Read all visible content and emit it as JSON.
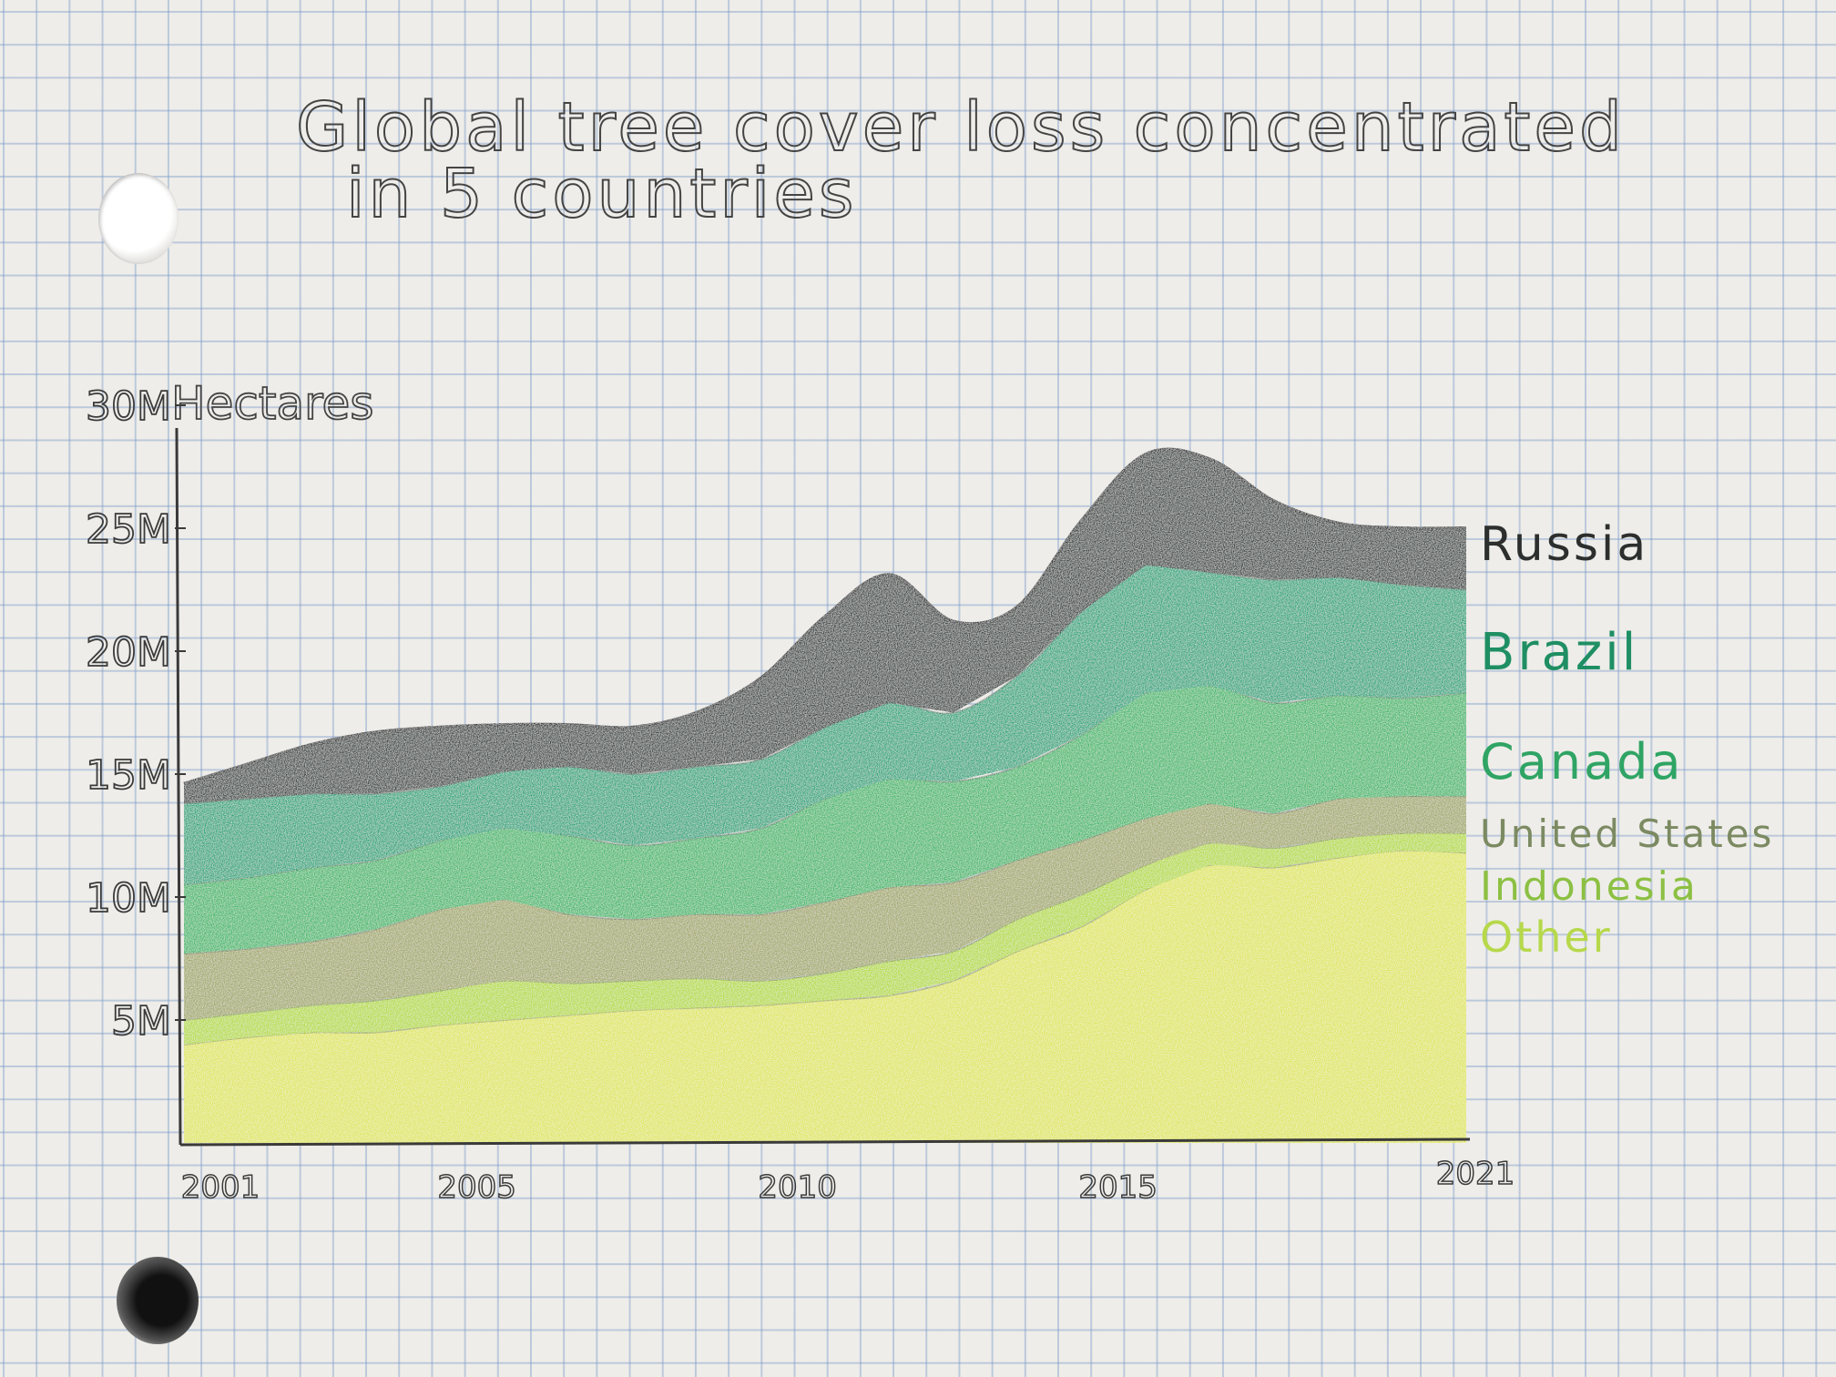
{
  "chart_data": {
    "type": "area",
    "stacked": true,
    "title": "Global tree cover loss concentrated in 5 countries",
    "ylabel": "Hectares",
    "x": [
      2001,
      2002,
      2003,
      2004,
      2005,
      2006,
      2007,
      2008,
      2009,
      2010,
      2011,
      2012,
      2013,
      2014,
      2015,
      2016,
      2017,
      2018,
      2019,
      2020,
      2021
    ],
    "xticks": [
      "2001",
      "2005",
      "2010",
      "2015",
      "2021"
    ],
    "yticks": [
      "5M",
      "10M",
      "15M",
      "20M",
      "25M",
      "30M"
    ],
    "ylim": [
      0,
      30
    ],
    "series": [
      {
        "name": "Other",
        "color": "#dfe55a",
        "values": [
          4.0,
          4.3,
          4.5,
          4.5,
          4.8,
          5.0,
          5.2,
          5.4,
          5.5,
          5.6,
          5.8,
          6.0,
          6.6,
          7.8,
          8.8,
          10.3,
          11.3,
          11.2,
          11.6,
          11.9,
          11.8
        ]
      },
      {
        "name": "Indonesia",
        "color": "#b6da3c",
        "values": [
          1.0,
          1.0,
          1.1,
          1.3,
          1.4,
          1.6,
          1.3,
          1.2,
          1.2,
          1.0,
          1.1,
          1.4,
          1.2,
          1.3,
          1.3,
          1.0,
          0.9,
          0.8,
          0.8,
          0.7,
          0.8
        ]
      },
      {
        "name": "United States",
        "color": "#a3a86a",
        "values": [
          2.7,
          2.6,
          2.6,
          2.9,
          3.3,
          3.3,
          2.8,
          2.5,
          2.6,
          2.7,
          2.9,
          3.0,
          2.8,
          2.4,
          2.2,
          1.9,
          1.6,
          1.4,
          1.6,
          1.5,
          1.5
        ]
      },
      {
        "name": "Canada",
        "color": "#3fb86a",
        "values": [
          2.8,
          2.9,
          3.0,
          2.8,
          2.8,
          2.9,
          3.2,
          3.0,
          3.1,
          3.5,
          4.2,
          4.4,
          4.1,
          3.8,
          4.3,
          5.1,
          4.8,
          4.5,
          4.2,
          4.0,
          4.2
        ]
      },
      {
        "name": "Brazil",
        "color": "#25a67e",
        "values": [
          3.3,
          3.2,
          3.0,
          2.7,
          2.2,
          2.3,
          2.8,
          2.9,
          2.9,
          2.8,
          2.9,
          3.1,
          2.8,
          3.7,
          5.0,
          5.2,
          4.6,
          5.0,
          4.8,
          4.6,
          4.2
        ]
      },
      {
        "name": "Russia",
        "color": "#3c4541",
        "values": [
          0.8,
          1.4,
          2.0,
          2.5,
          2.4,
          1.9,
          1.7,
          1.9,
          2.2,
          3.3,
          4.5,
          5.2,
          3.7,
          2.8,
          3.7,
          4.5,
          4.6,
          3.2,
          2.2,
          2.3,
          2.5
        ]
      }
    ]
  },
  "colors": {
    "ink": "#3a3a3a",
    "paper": "#eeede9",
    "grid": "#8aa5cc"
  }
}
